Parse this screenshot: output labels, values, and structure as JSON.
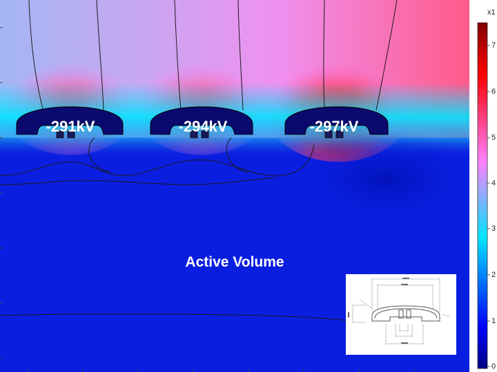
{
  "electrodes": [
    {
      "label": "-291kV"
    },
    {
      "label": "-294kV"
    },
    {
      "label": "-297kV"
    }
  ],
  "region_label": "Active Volume",
  "colorbar": {
    "multiplier": "x1",
    "ticks": [
      "7",
      "6",
      "5",
      "4",
      "3",
      "2",
      "1",
      "0"
    ],
    "colors": [
      "#000080",
      "#0000ff",
      "#00e5ff",
      "#ff80ff",
      "#ff0000",
      "#800000"
    ]
  },
  "colors": {
    "background_low": "#0a1ee0",
    "field_high": "#ff0000",
    "field_mid": "#ff80ff",
    "field_edge": "#00e5ff",
    "electrode_fill": "#0a0a6e"
  }
}
